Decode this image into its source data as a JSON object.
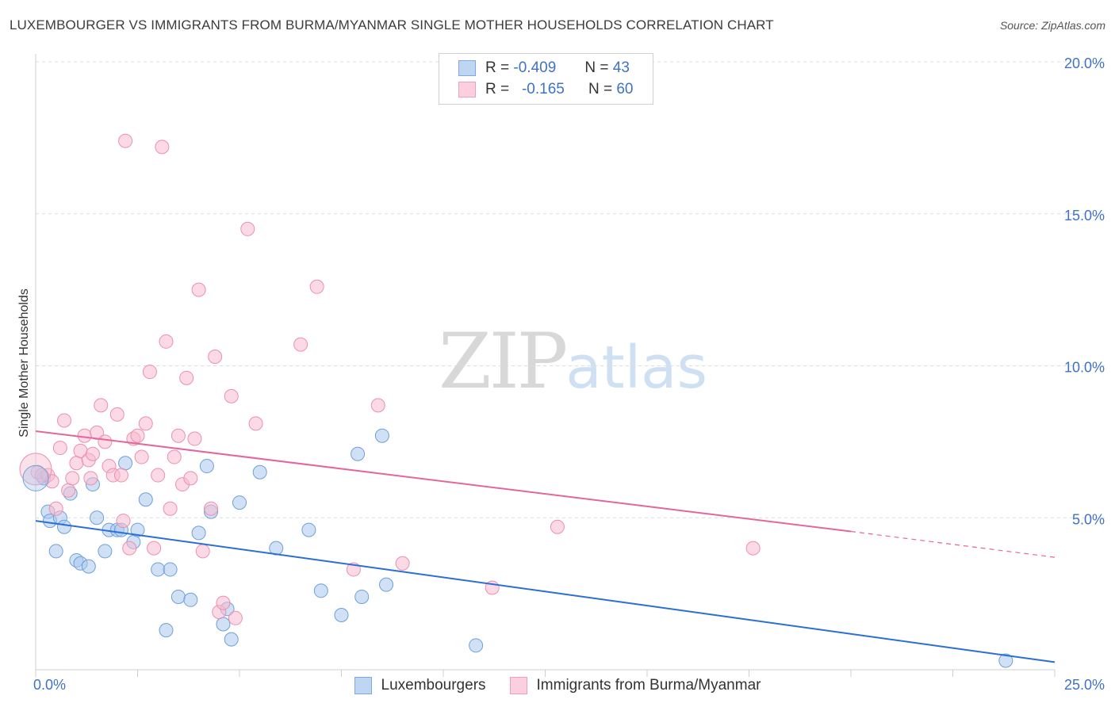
{
  "header": {
    "title": "LUXEMBOURGER VS IMMIGRANTS FROM BURMA/MYANMAR SINGLE MOTHER HOUSEHOLDS CORRELATION CHART",
    "source": "Source: ZipAtlas.com"
  },
  "watermark": {
    "zip": "ZIP",
    "atlas": "atlas"
  },
  "legend": {
    "row1": {
      "r_label": "R =",
      "r_value": "-0.409",
      "n_label": "N =",
      "n_value": "43"
    },
    "row2": {
      "r_label": "R =",
      "r_value": "-0.165",
      "n_label": "N =",
      "n_value": "60"
    }
  },
  "bottom_legend": {
    "series1": "Luxembourgers",
    "series2": "Immigrants from Burma/Myanmar"
  },
  "colors": {
    "blue_fill": "#a9c8ee",
    "blue_stroke": "#6f9fd8",
    "blue_line": "#2a6fd6",
    "pink_fill": "#f7bcd0",
    "pink_stroke": "#ec8fae",
    "pink_line": "#e4679a"
  },
  "chart_data": {
    "type": "scatter",
    "title": "LUXEMBOURGER VS IMMIGRANTS FROM BURMA/MYANMAR SINGLE MOTHER HOUSEHOLDS CORRELATION CHART",
    "xlabel": "",
    "ylabel": "Single Mother Households",
    "xlim": [
      0,
      25
    ],
    "ylim": [
      0,
      20
    ],
    "x_tick_labels": [
      "0.0%",
      "25.0%"
    ],
    "y_ticks": [
      5,
      10,
      15,
      20
    ],
    "y_tick_labels": [
      "5.0%",
      "10.0%",
      "15.0%",
      "20.0%"
    ],
    "grid": true,
    "series": [
      {
        "name": "Luxembourgers",
        "r": -0.409,
        "n": 43,
        "trend": {
          "x": [
            0,
            25
          ],
          "y": [
            4.9,
            0.25
          ]
        },
        "points": [
          [
            0.2,
            6.3
          ],
          [
            0.3,
            5.2
          ],
          [
            0.35,
            4.9
          ],
          [
            0.5,
            3.9
          ],
          [
            0.6,
            5.0
          ],
          [
            0.7,
            4.7
          ],
          [
            0.85,
            5.8
          ],
          [
            1.0,
            3.6
          ],
          [
            1.1,
            3.5
          ],
          [
            1.3,
            3.4
          ],
          [
            1.4,
            6.1
          ],
          [
            1.5,
            5.0
          ],
          [
            1.7,
            3.9
          ],
          [
            1.8,
            4.6
          ],
          [
            2.0,
            4.6
          ],
          [
            2.1,
            4.6
          ],
          [
            2.2,
            6.8
          ],
          [
            2.4,
            4.2
          ],
          [
            2.5,
            4.6
          ],
          [
            2.7,
            5.6
          ],
          [
            3.0,
            3.3
          ],
          [
            3.2,
            1.3
          ],
          [
            3.3,
            3.3
          ],
          [
            3.5,
            2.4
          ],
          [
            3.8,
            2.3
          ],
          [
            4.0,
            4.5
          ],
          [
            4.2,
            6.7
          ],
          [
            4.3,
            5.2
          ],
          [
            4.6,
            1.5
          ],
          [
            4.7,
            2.0
          ],
          [
            4.8,
            1.0
          ],
          [
            5.0,
            5.5
          ],
          [
            5.5,
            6.5
          ],
          [
            5.9,
            4.0
          ],
          [
            6.7,
            4.6
          ],
          [
            7.0,
            2.6
          ],
          [
            7.5,
            1.8
          ],
          [
            7.9,
            7.1
          ],
          [
            8.0,
            2.4
          ],
          [
            8.5,
            7.7
          ],
          [
            8.6,
            2.8
          ],
          [
            10.8,
            0.8
          ],
          [
            23.8,
            0.3
          ]
        ]
      },
      {
        "name": "Immigrants from Burma/Myanmar",
        "r": -0.165,
        "n": 60,
        "trend": {
          "x": [
            0,
            20
          ],
          "y": [
            7.85,
            4.55
          ]
        },
        "trend_dashed": {
          "x": [
            20,
            25
          ],
          "y": [
            4.55,
            3.7
          ]
        },
        "points": [
          [
            0.05,
            6.5
          ],
          [
            0.15,
            6.4
          ],
          [
            0.3,
            6.4
          ],
          [
            0.4,
            6.2
          ],
          [
            0.5,
            5.3
          ],
          [
            0.6,
            7.3
          ],
          [
            0.7,
            8.2
          ],
          [
            0.8,
            5.9
          ],
          [
            0.9,
            6.3
          ],
          [
            1.0,
            6.8
          ],
          [
            1.1,
            7.2
          ],
          [
            1.2,
            7.7
          ],
          [
            1.3,
            6.9
          ],
          [
            1.35,
            6.3
          ],
          [
            1.4,
            7.1
          ],
          [
            1.5,
            7.8
          ],
          [
            1.6,
            8.7
          ],
          [
            1.7,
            7.5
          ],
          [
            1.8,
            6.7
          ],
          [
            1.9,
            6.4
          ],
          [
            2.0,
            8.4
          ],
          [
            2.1,
            6.4
          ],
          [
            2.15,
            4.9
          ],
          [
            2.2,
            17.4
          ],
          [
            2.3,
            4.0
          ],
          [
            2.4,
            7.6
          ],
          [
            2.5,
            7.7
          ],
          [
            2.6,
            7.0
          ],
          [
            2.7,
            8.1
          ],
          [
            2.8,
            9.8
          ],
          [
            2.9,
            4.0
          ],
          [
            3.0,
            6.4
          ],
          [
            3.1,
            17.2
          ],
          [
            3.2,
            10.8
          ],
          [
            3.3,
            5.3
          ],
          [
            3.4,
            7.0
          ],
          [
            3.5,
            7.7
          ],
          [
            3.6,
            6.1
          ],
          [
            3.7,
            9.6
          ],
          [
            3.8,
            6.3
          ],
          [
            3.9,
            7.6
          ],
          [
            4.0,
            12.5
          ],
          [
            4.1,
            3.9
          ],
          [
            4.3,
            5.3
          ],
          [
            4.4,
            10.3
          ],
          [
            4.5,
            1.9
          ],
          [
            4.6,
            2.2
          ],
          [
            4.8,
            9.0
          ],
          [
            4.9,
            1.7
          ],
          [
            5.2,
            14.5
          ],
          [
            5.4,
            8.1
          ],
          [
            6.5,
            10.7
          ],
          [
            6.9,
            12.6
          ],
          [
            7.8,
            3.3
          ],
          [
            8.4,
            8.7
          ],
          [
            9.0,
            3.5
          ],
          [
            11.2,
            2.7
          ],
          [
            12.8,
            4.7
          ],
          [
            17.6,
            4.0
          ],
          [
            0.0,
            6.6
          ]
        ]
      }
    ]
  }
}
